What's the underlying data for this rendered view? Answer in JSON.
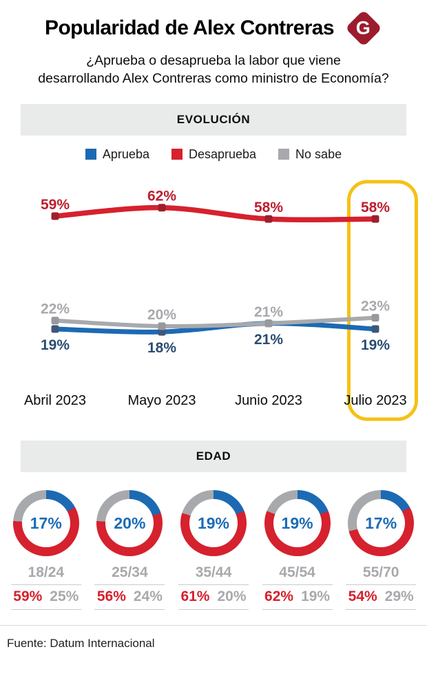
{
  "header": {
    "title": "Popularidad de Alex Contreras",
    "logo_letter": "G",
    "logo_color": "#9c1c2e",
    "subtitle_line1": "¿Aprueba o desaprueba la labor que viene",
    "subtitle_line2": "desarrollando Alex Contreras como ministro de Economía?"
  },
  "chart_data": [
    {
      "id": "evolucion",
      "type": "line",
      "title": "EVOLUCIÓN",
      "categories": [
        "Abril 2023",
        "Mayo 2023",
        "Junio 2023",
        "Julio 2023"
      ],
      "series": [
        {
          "name": "Aprueba",
          "values": [
            19,
            18,
            21,
            19
          ],
          "color": "#1c6ab3",
          "marker_color": "#3d5878",
          "label_color": "#2a4c71",
          "label_position": "below"
        },
        {
          "name": "Desaprueba",
          "values": [
            59,
            62,
            58,
            58
          ],
          "color": "#d6212e",
          "marker_color": "#9e1f2e",
          "label_color": "#be1e2e",
          "label_position": "above"
        },
        {
          "name": "No sabe",
          "values": [
            22,
            20,
            21,
            23
          ],
          "color": "#a7a9ac",
          "marker_color": "#97999c",
          "label_color": "#a7a9ac",
          "label_position": "above"
        }
      ],
      "draw_order": [
        "Aprueba",
        "No sabe",
        "Desaprueba"
      ],
      "highlight_category": "Julio 2023",
      "highlight_color": "#f6c115",
      "grid": false,
      "legend_position": "top",
      "value_suffix": "%"
    },
    {
      "id": "edad",
      "type": "pie",
      "donut": true,
      "title": "EDAD",
      "legend": [
        "Aprueba",
        "Desaprueba",
        "No sabe"
      ],
      "groups": [
        {
          "age": "18/24",
          "aprueba": 17,
          "desaprueba": 59,
          "no_sabe": 25
        },
        {
          "age": "25/34",
          "aprueba": 20,
          "desaprueba": 56,
          "no_sabe": 24
        },
        {
          "age": "35/44",
          "aprueba": 19,
          "desaprueba": 61,
          "no_sabe": 20
        },
        {
          "age": "45/54",
          "aprueba": 19,
          "desaprueba": 62,
          "no_sabe": 19
        },
        {
          "age": "55/70",
          "aprueba": 17,
          "desaprueba": 54,
          "no_sabe": 29
        }
      ],
      "colors": {
        "aprueba": "#1c6ab3",
        "desaprueba": "#d6212e",
        "no_sabe": "#a7a9ac",
        "center_label": "#1b6bb5",
        "age_label": "#a7a9ac",
        "desaprueba_label": "#d6202c",
        "no_sabe_label": "#a7a9ac"
      },
      "value_suffix": "%"
    }
  ],
  "footer": {
    "source": "Fuente: Datum Internacional"
  }
}
